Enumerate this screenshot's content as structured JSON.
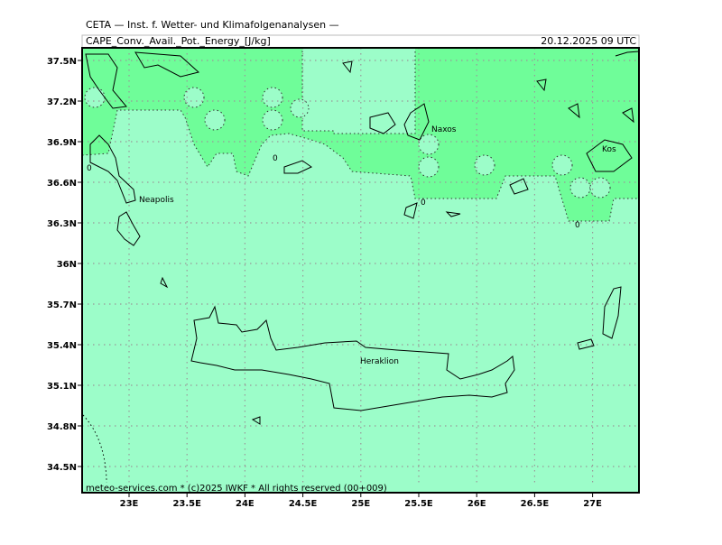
{
  "header": {
    "title": "CETA — Inst. f. Wetter- und Klimafolgenanalysen —",
    "field": "CAPE_Conv._Avail._Pot._Energy_[J/kg]",
    "time": "20.12.2025 09 UTC"
  },
  "footer": "meteo-services.com * (c)2025 IWKF * All rights reserved (00+009)",
  "lat_labels": [
    "37.5N",
    "37.2N",
    "36.9N",
    "36.6N",
    "36.3N",
    "36N",
    "35.7N",
    "35.4N",
    "35.1N",
    "34.8N",
    "34.5N"
  ],
  "lon_labels": [
    "23E",
    "23.5E",
    "24E",
    "24.5E",
    "25E",
    "25.5E",
    "26E",
    "26.5E",
    "27E"
  ],
  "places": [
    "Naxos",
    "Kos",
    "Neapolis",
    "Heraklion"
  ],
  "contour_labels": [
    "0",
    "0",
    "0",
    "0"
  ]
}
